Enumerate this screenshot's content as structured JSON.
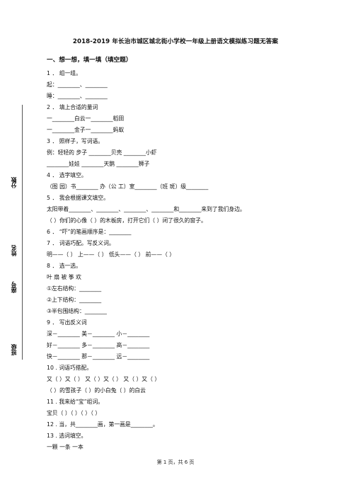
{
  "title": "2018-2019 年长治市城区城北街小学校一年级上册语文模拟练习题无答案",
  "section1": "一、想一想，填一填（填空题）",
  "questions": [
    "1 ． 组一组。",
    "起：________、________",
    "睡：________、________",
    "2 ． 填上合适的量词",
    "一________白云一________稻田",
    "一________金子一________蚂蚁",
    "3 ． 照样子，写词语。",
    "例：轻轻的  步子                        ________贝壳                        ________小虾",
    "________娃娃                      ________天鹅                        ________狮子",
    "4 ． 选字填空。",
    "（图      园）书________    办（公      工）室________（班    斑）级________",
    "5 ． 我会根据课文填空。",
    "            太阳带着________、________、________、________和________来到了我们身边。",
    "              （        ）你们的心像（        ）的木板房，打开它们（        ）闭了很久的窗子。",
    "6 ． “吓”的笔画顺序是：________",
    "7 ． 词语巧配。写反义词。",
    "  明——（        ）        上——（        ）        低头——（        ）        前——（        ）",
    "8 ． 选一选。",
    "   叶                扇                被                筝                欢",
    "①左右结构：________",
    "②上下结构：________",
    "③半包围结构：________",
    "9 ． 写出反义词",
    "深－________          美－________          小－________",
    "好－________          多－________          高－________",
    "快－________          那－________          远－________",
    "10 . 词语巧搭配。",
    "   又（        ）又（        ）      又（        ）又（        ）      又（        ）又（        ）",
    "   （        ）的雪孩子（        ）的小白兔（        ）的白云",
    "11 . 我来给“宝”组词。",
    "宝贝（        ）（        ）（        ）（        ）",
    "12 . 当，共________画，第一画是________。",
    "13 . 选词填空。",
    "一颗                一条                一本"
  ],
  "footer": "第 1 页，共 6 页",
  "binding": {
    "score": "分数",
    "name": "姓名",
    "seat": "座号",
    "class": "班级"
  }
}
